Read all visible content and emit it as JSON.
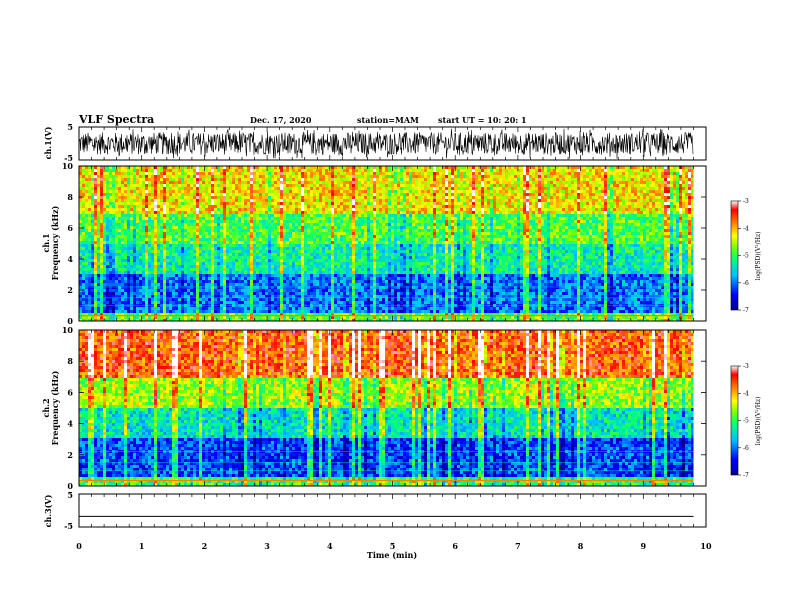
{
  "header": {
    "title": "VLF Spectra",
    "date": "Dec. 17, 2020",
    "station": "station=MAM",
    "start": "start  UT  =   10: 20: 1"
  },
  "colors": {
    "colormap": [
      "#00008f",
      "#0000ff",
      "#00bfff",
      "#00ff7f",
      "#7fff00",
      "#ffff00",
      "#ff8000",
      "#ff0000",
      "#ffffff"
    ],
    "waveform": "#000000"
  },
  "chart_data": [
    {
      "type": "line",
      "panel": "ch1-waveform",
      "ylabel": "ch.1(V)",
      "ylim": [
        -5,
        5
      ],
      "yticks": [
        "5",
        "-5"
      ],
      "description": "dense broadband waveform spanning roughly -4 to +4 V over the full record",
      "xlim": [
        0,
        10
      ]
    },
    {
      "type": "heatmap",
      "panel": "ch1-spectrogram",
      "ylabel": "ch.1\nFrequency  (kHz)",
      "ylim": [
        0,
        10
      ],
      "yticks": [
        "0",
        "2",
        "4",
        "6",
        "8",
        "10"
      ],
      "xlim": [
        0,
        10
      ],
      "data_end_min": 9.8,
      "colorbar": {
        "label": "log(PSD)(V²/Hz)",
        "range": [
          -7,
          -3
        ],
        "ticks": [
          "-3",
          "-4",
          "-5",
          "-6",
          "-7"
        ]
      },
      "bands_kHz": [
        {
          "range": [
            0,
            0.5
          ],
          "logPSD": -4.8
        },
        {
          "range": [
            0.5,
            3
          ],
          "logPSD": -6.0
        },
        {
          "range": [
            3,
            5
          ],
          "logPSD": -5.3
        },
        {
          "range": [
            5,
            7
          ],
          "logPSD": -4.9
        },
        {
          "range": [
            7,
            10
          ],
          "logPSD": -4.2
        }
      ]
    },
    {
      "type": "heatmap",
      "panel": "ch2-spectrogram",
      "ylabel": "ch.2\nFrequency  (kHz)",
      "ylim": [
        0,
        10
      ],
      "yticks": [
        "0",
        "2",
        "4",
        "6",
        "8",
        "10"
      ],
      "xlim": [
        0,
        10
      ],
      "data_end_min": 9.8,
      "colorbar": {
        "label": "log(PSD)(V²/Hz)",
        "range": [
          -7,
          -3
        ],
        "ticks": [
          "-3",
          "-4",
          "-5",
          "-6",
          "-7"
        ]
      },
      "bands_kHz": [
        {
          "range": [
            0,
            0.5
          ],
          "logPSD": -5.0
        },
        {
          "range": [
            0.5,
            3
          ],
          "logPSD": -6.2
        },
        {
          "range": [
            3,
            5
          ],
          "logPSD": -5.4
        },
        {
          "range": [
            5,
            7
          ],
          "logPSD": -4.6
        },
        {
          "range": [
            7,
            10
          ],
          "logPSD": -3.6
        }
      ]
    },
    {
      "type": "line",
      "panel": "ch3-waveform",
      "ylabel": "ch.3(V)",
      "ylim": [
        -5,
        5
      ],
      "yticks": [
        "5",
        "-5"
      ],
      "xlim": [
        0,
        10
      ],
      "xlabel": "Time  (min)",
      "xticks": [
        "0",
        "1",
        "2",
        "3",
        "4",
        "5",
        "6",
        "7",
        "8",
        "9",
        "10"
      ],
      "series": [
        {
          "x": [
            0,
            9.8
          ],
          "y": [
            -1.8,
            -1.8
          ]
        }
      ]
    }
  ]
}
